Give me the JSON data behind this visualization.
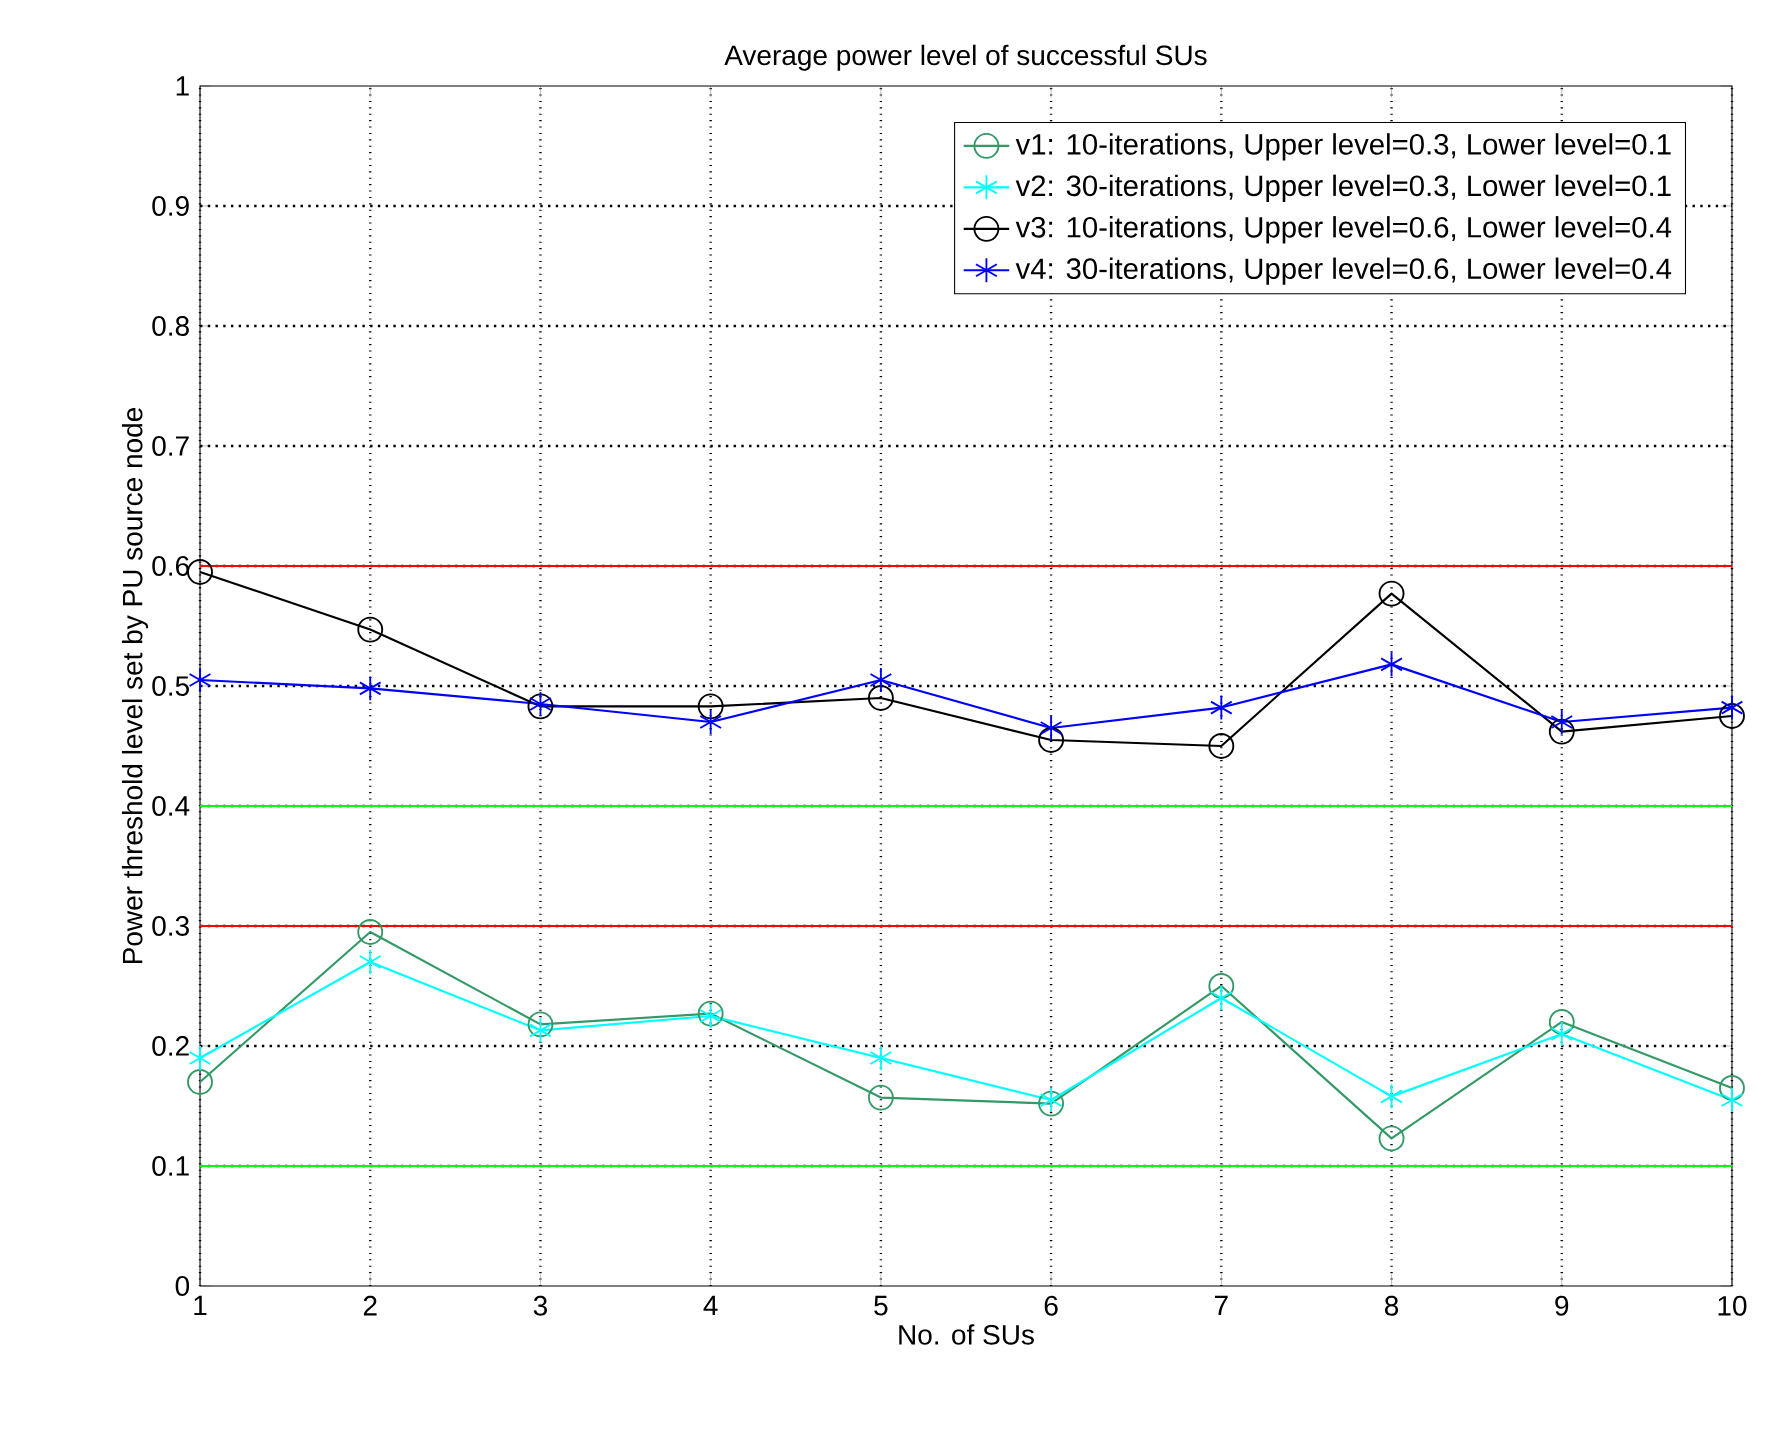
{
  "chart_data": {
    "type": "line",
    "title": "Average power level of successful SUs",
    "xlabel": "No. of SUs",
    "ylabel": "Power threshold level set by PU source node",
    "x": [
      1,
      2,
      3,
      4,
      5,
      6,
      7,
      8,
      9,
      10
    ],
    "series": [
      {
        "color": "#ff0000",
        "marker": "none",
        "values": [
          0.6,
          0.6,
          0.6,
          0.6,
          0.6,
          0.6,
          0.6,
          0.6,
          0.6,
          0.6
        ]
      },
      {
        "color": "#ff0000",
        "marker": "none",
        "values": [
          0.3,
          0.3,
          0.3,
          0.3,
          0.3,
          0.3,
          0.3,
          0.3,
          0.3,
          0.3
        ]
      },
      {
        "color": "#00ff00",
        "marker": "none",
        "values": [
          0.4,
          0.4,
          0.4,
          0.4,
          0.4,
          0.4,
          0.4,
          0.4,
          0.4,
          0.4
        ]
      },
      {
        "color": "#00ff00",
        "marker": "none",
        "values": [
          0.1,
          0.1,
          0.1,
          0.1,
          0.1,
          0.1,
          0.1,
          0.1,
          0.1,
          0.1
        ]
      },
      {
        "name": "v1: 10-iterations, Upper level=0.3, Lower level=0.1",
        "color": "#339966",
        "marker": "circle",
        "values": [
          0.17,
          0.295,
          0.218,
          0.227,
          0.157,
          0.152,
          0.25,
          0.123,
          0.22,
          0.165
        ]
      },
      {
        "name": "v2: 30-iterations, Upper level=0.3, Lower level=0.1",
        "color": "#00ffff",
        "marker": "cross",
        "values": [
          0.19,
          0.27,
          0.213,
          0.225,
          0.19,
          0.155,
          0.24,
          0.158,
          0.21,
          0.155
        ]
      },
      {
        "name": "v3: 10-iterations, Upper level=0.6, Lower level=0.4",
        "color": "#000000",
        "marker": "circle",
        "values": [
          0.595,
          0.547,
          0.483,
          0.483,
          0.49,
          0.455,
          0.45,
          0.577,
          0.462,
          0.475
        ]
      },
      {
        "name": "v4: 30-iterations, Upper level=0.6, Lower level=0.4",
        "color": "#0000ff",
        "marker": "cross",
        "values": [
          0.505,
          0.498,
          0.485,
          0.47,
          0.505,
          0.465,
          0.482,
          0.518,
          0.47,
          0.482
        ]
      }
    ],
    "xlim": [
      1,
      10
    ],
    "ylim": [
      0,
      1
    ],
    "xticks": [
      1,
      2,
      3,
      4,
      5,
      6,
      7,
      8,
      9,
      10
    ],
    "yticks": [
      0,
      0.1,
      0.2,
      0.3,
      0.4,
      0.5,
      0.6,
      0.7,
      0.8,
      0.9,
      1
    ],
    "grid": true,
    "legend": "top right",
    "line_style": "solid"
  }
}
